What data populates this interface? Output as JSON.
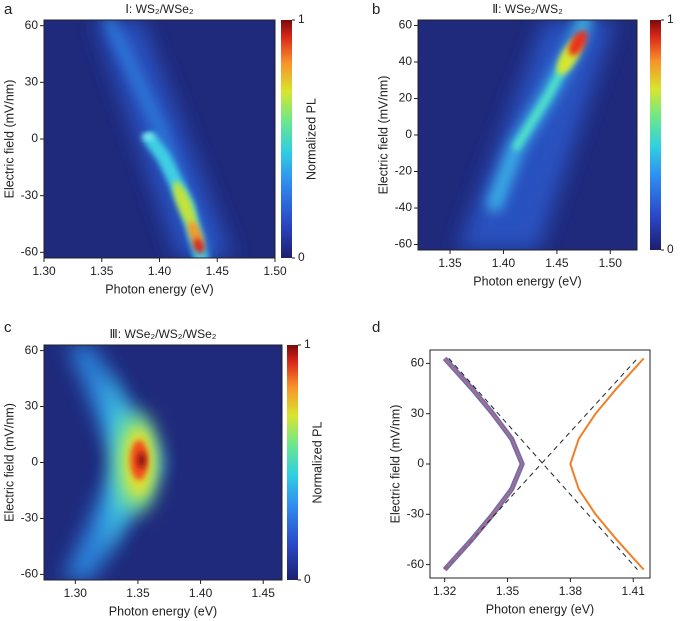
{
  "chart_data": [
    {
      "type": "heatmap",
      "panel": "a",
      "title": "Ⅰ: WS₂/WSe₂",
      "xlabel": "Photon energy (eV)",
      "ylabel": "Electric field (mV/nm)",
      "xlim": [
        1.3,
        1.5
      ],
      "xticks": [
        {
          "value": 1.3,
          "label": "1.30"
        },
        1.35,
        {
          "value": 1.4,
          "label": "1.40"
        },
        1.45,
        {
          "value": 1.5,
          "label": "1.50"
        }
      ],
      "ylim": [
        -63,
        63
      ],
      "yticks": [
        -60,
        -30,
        0,
        30,
        60
      ],
      "colorbar_label": "Normalized PL",
      "colorbar_ticks": [
        0,
        1
      ]
    },
    {
      "type": "heatmap",
      "panel": "b",
      "title": "Ⅱ: WSe₂/WS₂",
      "xlabel": "Photon energy (eV)",
      "ylabel": "Electric field (mV/nm)",
      "xlim": [
        1.32,
        1.525
      ],
      "xticks": [
        1.35,
        {
          "value": 1.4,
          "label": "1.40"
        },
        1.45,
        {
          "value": 1.5,
          "label": "1.50"
        }
      ],
      "ylim": [
        -63,
        63
      ],
      "yticks": [
        -60,
        -40,
        -20,
        0,
        20,
        40,
        60
      ],
      "colorbar_ticks": [
        0,
        1
      ]
    },
    {
      "type": "heatmap",
      "panel": "c",
      "title": "Ⅲ: WSe₂/WS₂/WSe₂",
      "xlabel": "Photon energy (eV)",
      "ylabel": "Electric field (mV/nm)",
      "xlim": [
        1.275,
        1.465
      ],
      "xticks": [
        {
          "value": 1.3,
          "label": "1.30"
        },
        1.35,
        {
          "value": 1.4,
          "label": "1.40"
        },
        1.45
      ],
      "ylim": [
        -63,
        63
      ],
      "yticks": [
        -60,
        -30,
        0,
        30,
        60
      ],
      "colorbar_label": "Normalized PL",
      "colorbar_ticks": [
        0,
        1
      ]
    },
    {
      "type": "line",
      "panel": "d",
      "xlabel": "Photon energy (eV)",
      "ylabel": "Electric field (mV/nm)",
      "xlim": [
        1.313,
        1.418
      ],
      "xticks": [
        1.32,
        1.35,
        1.38,
        1.41
      ],
      "ylim": [
        -68,
        68
      ],
      "yticks": [
        -60,
        -30,
        0,
        30,
        60
      ],
      "series": [
        {
          "color": "#6a6fb8",
          "width": 5,
          "x": [
            1.32,
            1.333,
            1.343,
            1.352,
            1.357,
            1.352,
            1.343,
            1.333,
            1.32
          ],
          "values": [
            -63,
            -45,
            -30,
            -15,
            0,
            15,
            30,
            45,
            63
          ]
        },
        {
          "color": "#f07f2a",
          "width": 2,
          "x": [
            1.415,
            1.402,
            1.392,
            1.384,
            1.38,
            1.384,
            1.392,
            1.402,
            1.415
          ],
          "values": [
            -63,
            -45,
            -30,
            -15,
            0,
            15,
            30,
            45,
            63
          ]
        },
        {
          "color": "#222222",
          "width": 1,
          "style": "dashed",
          "x": [
            1.32,
            1.412
          ],
          "values": [
            -63,
            63
          ]
        },
        {
          "color": "#222222",
          "width": 1,
          "style": "dashed",
          "x": [
            1.322,
            1.412
          ],
          "values": [
            63,
            -63
          ]
        }
      ]
    }
  ]
}
